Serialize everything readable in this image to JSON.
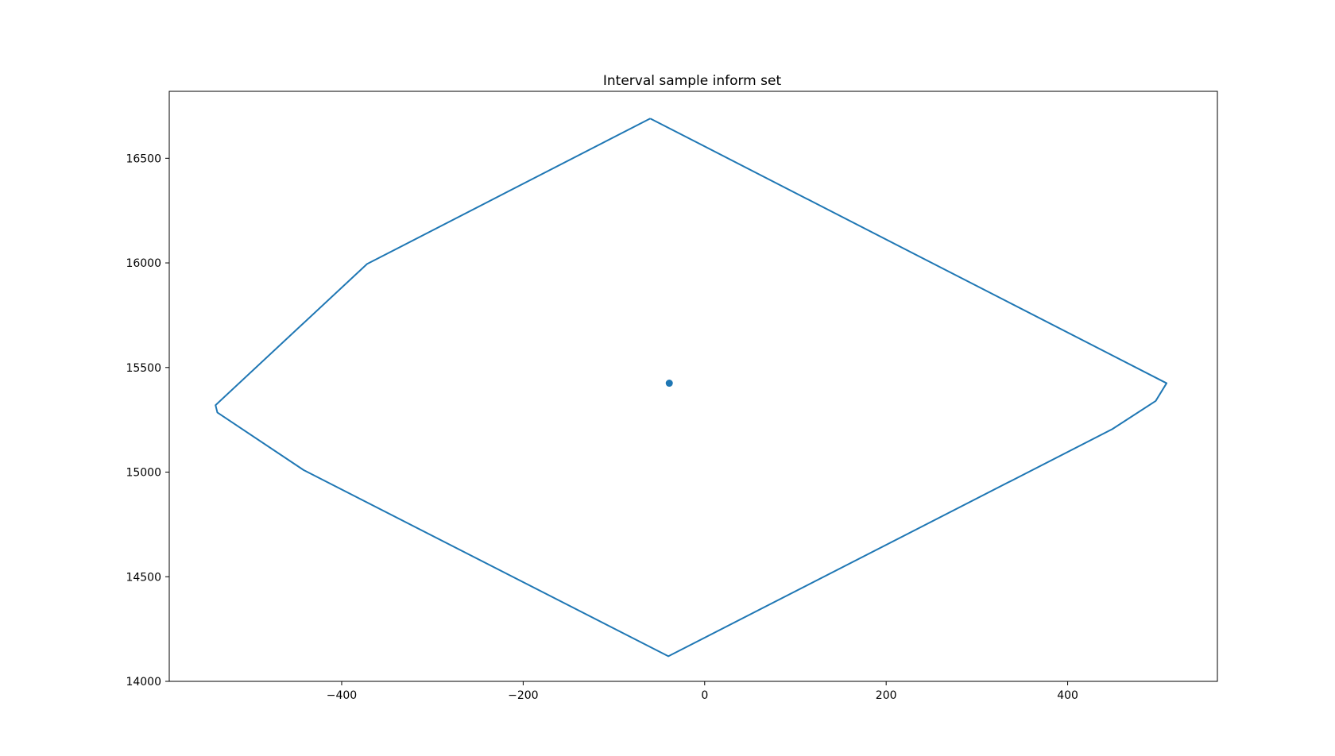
{
  "chart_data": {
    "type": "line",
    "title": "Interval sample inform set",
    "xlabel": "",
    "ylabel": "",
    "xlim": [
      -590,
      565
    ],
    "ylim": [
      14000,
      16820
    ],
    "x_ticks": [
      -400,
      -200,
      0,
      200,
      400
    ],
    "x_tick_labels": [
      "−400",
      "−200",
      "0",
      "200",
      "400"
    ],
    "y_ticks": [
      14000,
      14500,
      15000,
      15500,
      16000,
      16500
    ],
    "y_tick_labels": [
      "14000",
      "14500",
      "15000",
      "15500",
      "16000",
      "16500"
    ],
    "grid": false,
    "legend": "none",
    "series": [
      {
        "kind": "line",
        "color": "#1f77b4",
        "points": [
          [
            -60,
            16690
          ],
          [
            509,
            15425
          ],
          [
            497,
            15340
          ],
          [
            449,
            15205
          ],
          [
            -40,
            14120
          ],
          [
            -442,
            15010
          ],
          [
            -537,
            15285
          ],
          [
            -539,
            15320
          ],
          [
            -372,
            15995
          ],
          [
            -60,
            16690
          ]
        ]
      },
      {
        "kind": "scatter",
        "color": "#1f77b4",
        "points": [
          [
            -39,
            15425
          ]
        ]
      }
    ]
  }
}
